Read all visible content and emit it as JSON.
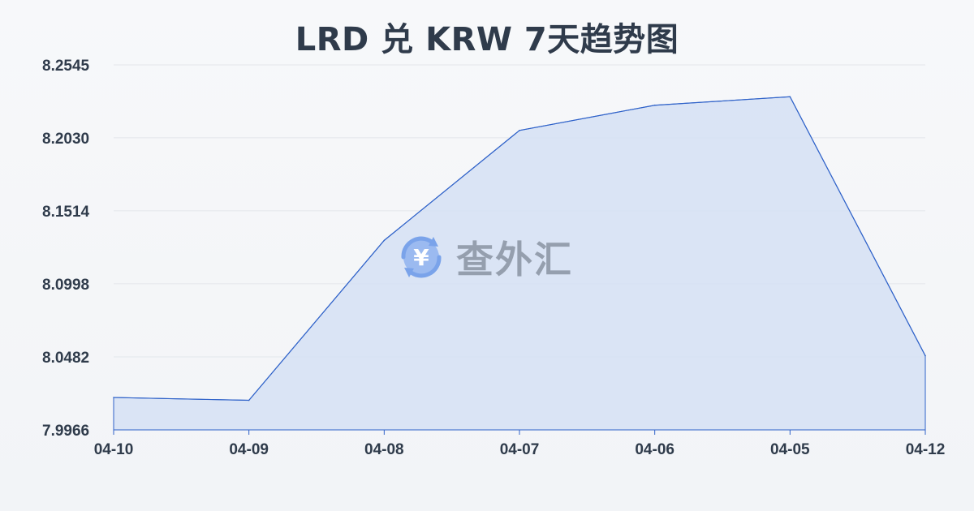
{
  "chart_data": {
    "type": "area",
    "title": "LRD 兑 KRW 7天趋势图",
    "categories": [
      "04-10",
      "04-09",
      "04-08",
      "04-07",
      "04-06",
      "04-05",
      "04-12"
    ],
    "series": [
      {
        "values": [
          8.0195,
          8.0175,
          8.1305,
          8.2082,
          8.226,
          8.232,
          8.049
        ]
      }
    ],
    "yticks": [
      "8.2545",
      "8.2030",
      "8.1514",
      "8.0998",
      "8.0482",
      "7.9966"
    ],
    "ylim": [
      7.9966,
      8.2545
    ],
    "grid": true,
    "colors": {
      "line": "#2f62c9",
      "fill": "#d5e0f5",
      "grid": "#e3e6eb",
      "text": "#2f3b4b"
    }
  },
  "watermark": {
    "text": "查外汇",
    "icon": "yen-exchange-icon"
  }
}
